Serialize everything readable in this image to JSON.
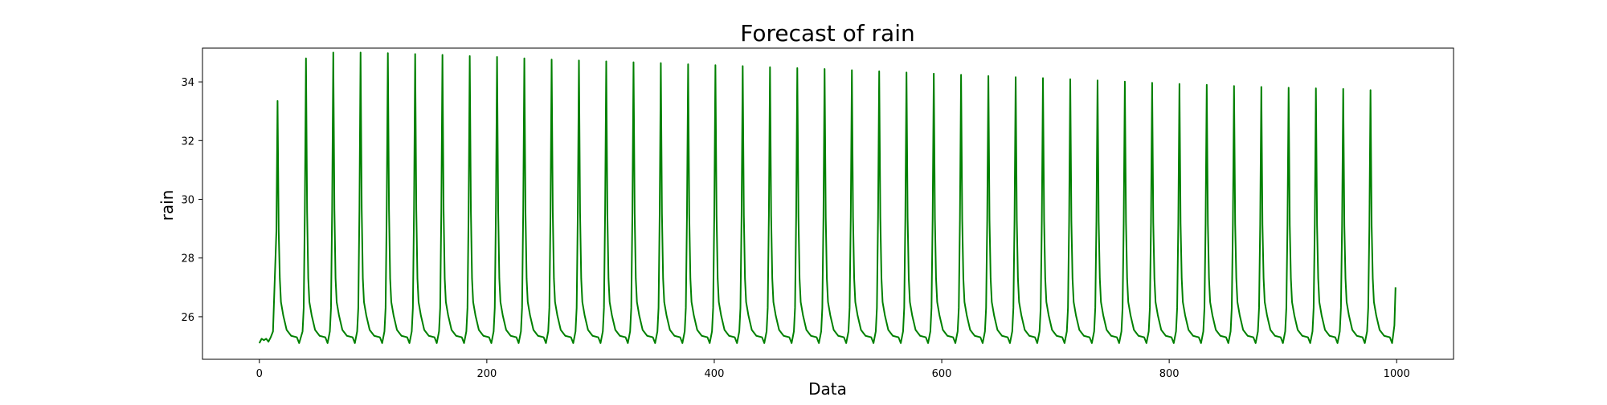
{
  "chart_data": {
    "type": "line",
    "title": "Forecast of rain",
    "xlabel": "Data",
    "ylabel": "rain",
    "xlim": [
      -50,
      1050
    ],
    "ylim": [
      24.55,
      35.15
    ],
    "x_ticks": [
      0,
      200,
      400,
      600,
      800,
      1000
    ],
    "y_ticks": [
      26,
      28,
      30,
      32,
      34
    ],
    "grid": false,
    "legend": "none",
    "series": [
      {
        "color": "#008000",
        "generator": {
          "x_start": 0,
          "x_end": 999,
          "start_values": [
            [
              0,
              25.1
            ],
            [
              2,
              25.25
            ],
            [
              4,
              25.2
            ],
            [
              6,
              25.25
            ],
            [
              8,
              25.15
            ],
            [
              10,
              25.3
            ],
            [
              12,
              25.5
            ]
          ],
          "peaks": [
            [
              16,
              33.35
            ],
            [
              41,
              34.8
            ],
            [
              65,
              35.0
            ],
            [
              89,
              35.0
            ],
            [
              113,
              34.98
            ],
            [
              137,
              34.95
            ],
            [
              161,
              34.92
            ],
            [
              185,
              34.88
            ],
            [
              209,
              34.85
            ],
            [
              233,
              34.8
            ],
            [
              257,
              34.76
            ],
            [
              281,
              34.73
            ],
            [
              305,
              34.7
            ],
            [
              329,
              34.67
            ],
            [
              353,
              34.64
            ],
            [
              377,
              34.6
            ],
            [
              401,
              34.57
            ],
            [
              425,
              34.54
            ],
            [
              449,
              34.5
            ],
            [
              473,
              34.47
            ],
            [
              497,
              34.44
            ],
            [
              521,
              34.4
            ],
            [
              545,
              34.36
            ],
            [
              569,
              34.32
            ],
            [
              593,
              34.28
            ],
            [
              617,
              34.24
            ],
            [
              641,
              34.2
            ],
            [
              665,
              34.16
            ],
            [
              689,
              34.13
            ],
            [
              713,
              34.09
            ],
            [
              737,
              34.05
            ],
            [
              761,
              34.01
            ],
            [
              785,
              33.97
            ],
            [
              809,
              33.93
            ],
            [
              833,
              33.9
            ],
            [
              857,
              33.86
            ],
            [
              881,
              33.83
            ],
            [
              905,
              33.8
            ],
            [
              929,
              33.78
            ],
            [
              953,
              33.76
            ],
            [
              977,
              33.72
            ]
          ],
          "baseline": 25.3,
          "trough": 25.1,
          "end_value": 27.0
        }
      }
    ]
  }
}
